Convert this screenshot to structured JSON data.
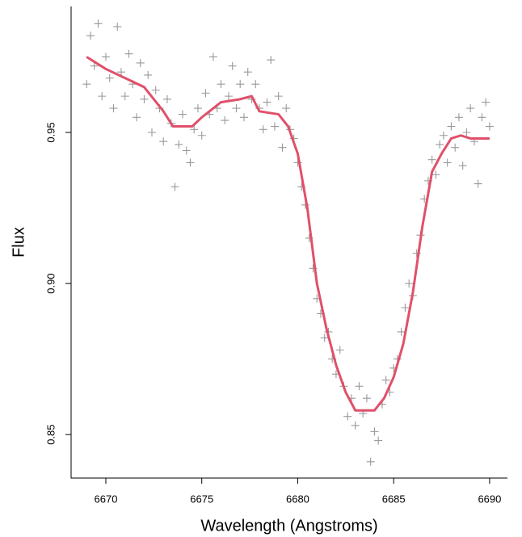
{
  "chart_data": {
    "type": "scatter",
    "xlabel": "Wavelength (Angstroms)",
    "ylabel": "Flux",
    "xlim": [
      6668.19,
      6690.93
    ],
    "ylim": [
      0.8356,
      0.9917
    ],
    "xticks": [
      6670,
      6675,
      6680,
      6685,
      6690
    ],
    "yticks": [
      0.85,
      {
        "value": 0.9,
        "label": "0.90"
      },
      0.95
    ],
    "color": "#999999",
    "x": [
      6669.0,
      6669.2,
      6669.4,
      6669.6,
      6669.8,
      6670.0,
      6670.2,
      6670.4,
      6670.6,
      6670.8,
      6671.0,
      6671.2,
      6671.4,
      6671.6,
      6671.8,
      6672.0,
      6672.2,
      6672.4,
      6672.6,
      6672.8,
      6673.0,
      6673.2,
      6673.4,
      6673.6,
      6673.8,
      6674.0,
      6674.2,
      6674.4,
      6674.6,
      6674.8,
      6675.0,
      6675.2,
      6675.4,
      6675.6,
      6675.8,
      6676.0,
      6676.2,
      6676.4,
      6676.6,
      6676.8,
      6677.0,
      6677.2,
      6677.4,
      6677.6,
      6677.8,
      6678.0,
      6678.2,
      6678.4,
      6678.6,
      6678.8,
      6679.0,
      6679.2,
      6679.4,
      6679.6,
      6679.8,
      6680.0,
      6680.2,
      6680.4,
      6680.6,
      6680.8,
      6681.0,
      6681.2,
      6681.4,
      6681.6,
      6681.8,
      6682.0,
      6682.2,
      6682.4,
      6682.6,
      6682.8,
      6683.0,
      6683.2,
      6683.4,
      6683.6,
      6683.8,
      6684.0,
      6684.2,
      6684.4,
      6684.6,
      6684.8,
      6685.0,
      6685.2,
      6685.4,
      6685.6,
      6685.8,
      6686.0,
      6686.2,
      6686.4,
      6686.6,
      6686.8,
      6687.0,
      6687.2,
      6687.4,
      6687.6,
      6687.8,
      6688.0,
      6688.2,
      6688.4,
      6688.6,
      6688.8,
      6689.0,
      6689.2,
      6689.4,
      6689.6,
      6689.8,
      6690.0
    ],
    "values": [
      0.966,
      0.982,
      0.972,
      0.986,
      0.962,
      0.975,
      0.968,
      0.958,
      0.985,
      0.97,
      0.962,
      0.976,
      0.966,
      0.955,
      0.973,
      0.961,
      0.969,
      0.95,
      0.964,
      0.958,
      0.947,
      0.961,
      0.953,
      0.932,
      0.946,
      0.956,
      0.944,
      0.94,
      0.951,
      0.958,
      0.949,
      0.963,
      0.956,
      0.975,
      0.958,
      0.966,
      0.954,
      0.962,
      0.972,
      0.958,
      0.966,
      0.955,
      0.97,
      0.961,
      0.966,
      0.958,
      0.951,
      0.96,
      0.974,
      0.952,
      0.962,
      0.945,
      0.958,
      0.951,
      0.948,
      0.94,
      0.932,
      0.926,
      0.915,
      0.905,
      0.895,
      0.89,
      0.882,
      0.884,
      0.875,
      0.87,
      0.878,
      0.866,
      0.856,
      0.862,
      0.853,
      0.866,
      0.857,
      0.862,
      0.841,
      0.851,
      0.848,
      0.86,
      0.868,
      0.864,
      0.872,
      0.875,
      0.884,
      0.892,
      0.9,
      0.896,
      0.91,
      0.916,
      0.928,
      0.934,
      0.941,
      0.936,
      0.946,
      0.949,
      0.94,
      0.952,
      0.945,
      0.955,
      0.939,
      0.95,
      0.958,
      0.947,
      0.933,
      0.955,
      0.96,
      0.952
    ],
    "fit": {
      "color": "#e0506a",
      "x": [
        6669,
        6670,
        6671,
        6672,
        6673,
        6673.5,
        6674.5,
        6675,
        6676,
        6677,
        6677.6,
        6678,
        6679,
        6679.5,
        6680,
        6680.5,
        6681,
        6681.5,
        6682,
        6682.5,
        6683,
        6684,
        6684.5,
        6685,
        6685.5,
        6686,
        6686.5,
        6687,
        6687.5,
        6688,
        6688.5,
        6689,
        6690
      ],
      "values": [
        0.975,
        0.971,
        0.968,
        0.965,
        0.957,
        0.952,
        0.952,
        0.955,
        0.96,
        0.961,
        0.962,
        0.957,
        0.956,
        0.952,
        0.943,
        0.925,
        0.9,
        0.885,
        0.873,
        0.864,
        0.858,
        0.858,
        0.862,
        0.869,
        0.88,
        0.897,
        0.919,
        0.937,
        0.943,
        0.948,
        0.949,
        0.948,
        0.948
      ]
    }
  }
}
